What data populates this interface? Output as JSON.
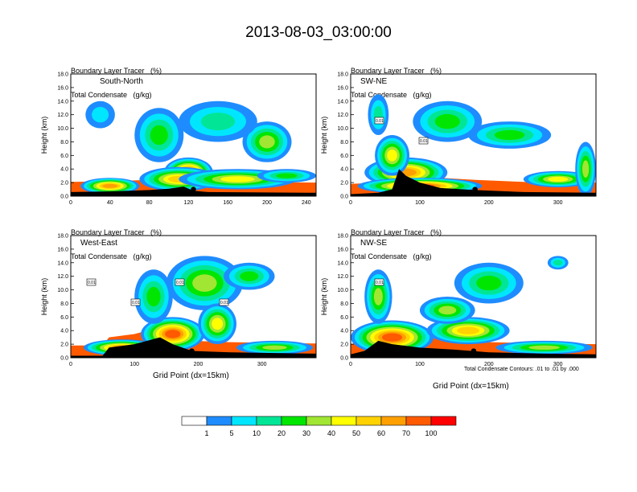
{
  "title": "2013-08-03_03:00:00",
  "panel_header": {
    "line1": "Boundary Layer Tracer   (%)",
    "line2": "Total Condensate   (g/kg)"
  },
  "x_axis_label": "Grid Point (dx=15km)",
  "y_axis_label": "Height (km)",
  "contour_note": "Total Condensate Contours: .01 to .01 by .000",
  "colorbar": {
    "colors": [
      "#ffffff",
      "#1e8cff",
      "#00e6ff",
      "#00e696",
      "#00e600",
      "#a0e632",
      "#ffff00",
      "#ffd200",
      "#ffa000",
      "#ff5a00",
      "#ff0000"
    ],
    "labels": [
      "1",
      "5",
      "10",
      "20",
      "30",
      "40",
      "50",
      "60",
      "70",
      "100"
    ]
  },
  "chart_data": [
    {
      "type": "heatmap",
      "panel": "South-North",
      "ylim": [
        0,
        18
      ],
      "yticks": [
        "0.0",
        "2.0",
        "4.0",
        "6.0",
        "8.0",
        "10.0",
        "12.0",
        "14.0",
        "16.0",
        "18.0"
      ],
      "xlim": [
        0,
        250
      ],
      "xticks": [
        0,
        40,
        80,
        120,
        160,
        200,
        240
      ],
      "terrain": [
        [
          0,
          0.6
        ],
        [
          40,
          0.7
        ],
        [
          80,
          0.9
        ],
        [
          100,
          1.1
        ],
        [
          115,
          1.4
        ],
        [
          125,
          0.8
        ],
        [
          140,
          0.6
        ],
        [
          250,
          0.5
        ]
      ],
      "marker_x": 125,
      "blob_labels": []
    },
    {
      "type": "heatmap",
      "panel": "SW-NE",
      "ylim": [
        0,
        18
      ],
      "yticks": [
        "0.0",
        "2.0",
        "4.0",
        "6.0",
        "8.0",
        "10.0",
        "12.0",
        "14.0",
        "16.0",
        "18.0"
      ],
      "xlim": [
        0,
        355
      ],
      "xticks": [
        0,
        100,
        200,
        300
      ],
      "terrain": [
        [
          0,
          0.3
        ],
        [
          40,
          0.5
        ],
        [
          60,
          1.0
        ],
        [
          70,
          4.0
        ],
        [
          80,
          3.0
        ],
        [
          100,
          2.0
        ],
        [
          130,
          1.2
        ],
        [
          180,
          0.9
        ],
        [
          250,
          0.6
        ],
        [
          355,
          0.5
        ]
      ],
      "marker_x": 180,
      "blob_labels": [
        "0.01",
        "0.01"
      ]
    },
    {
      "type": "heatmap",
      "panel": "West-East",
      "ylim": [
        0,
        18
      ],
      "yticks": [
        "0.0",
        "2.0",
        "4.0",
        "6.0",
        "8.0",
        "10.0",
        "12.0",
        "14.0",
        "16.0",
        "18.0"
      ],
      "xlim": [
        0,
        385
      ],
      "xticks": [
        0,
        100,
        200,
        300
      ],
      "terrain": [
        [
          0,
          0.3
        ],
        [
          50,
          0.3
        ],
        [
          60,
          1.5
        ],
        [
          100,
          2.0
        ],
        [
          140,
          3.0
        ],
        [
          160,
          2.0
        ],
        [
          190,
          1.0
        ],
        [
          250,
          0.8
        ],
        [
          385,
          0.6
        ]
      ],
      "marker_x": 190,
      "blob_labels": [
        "0.01",
        "0.01",
        "0.01",
        "0.01"
      ]
    },
    {
      "type": "heatmap",
      "panel": "NW-SE",
      "ylim": [
        0,
        18
      ],
      "yticks": [
        "0.0",
        "2.0",
        "4.0",
        "6.0",
        "8.0",
        "10.0",
        "12.0",
        "14.0",
        "16.0",
        "18.0"
      ],
      "xlim": [
        0,
        355
      ],
      "xticks": [
        0,
        100,
        200,
        300
      ],
      "terrain": [
        [
          0,
          0.5
        ],
        [
          20,
          1.0
        ],
        [
          40,
          2.5
        ],
        [
          60,
          2.0
        ],
        [
          100,
          1.5
        ],
        [
          150,
          1.2
        ],
        [
          200,
          0.8
        ],
        [
          280,
          0.6
        ],
        [
          355,
          0.5
        ]
      ],
      "marker_x": 178,
      "blob_labels": [
        "0.01"
      ]
    }
  ]
}
